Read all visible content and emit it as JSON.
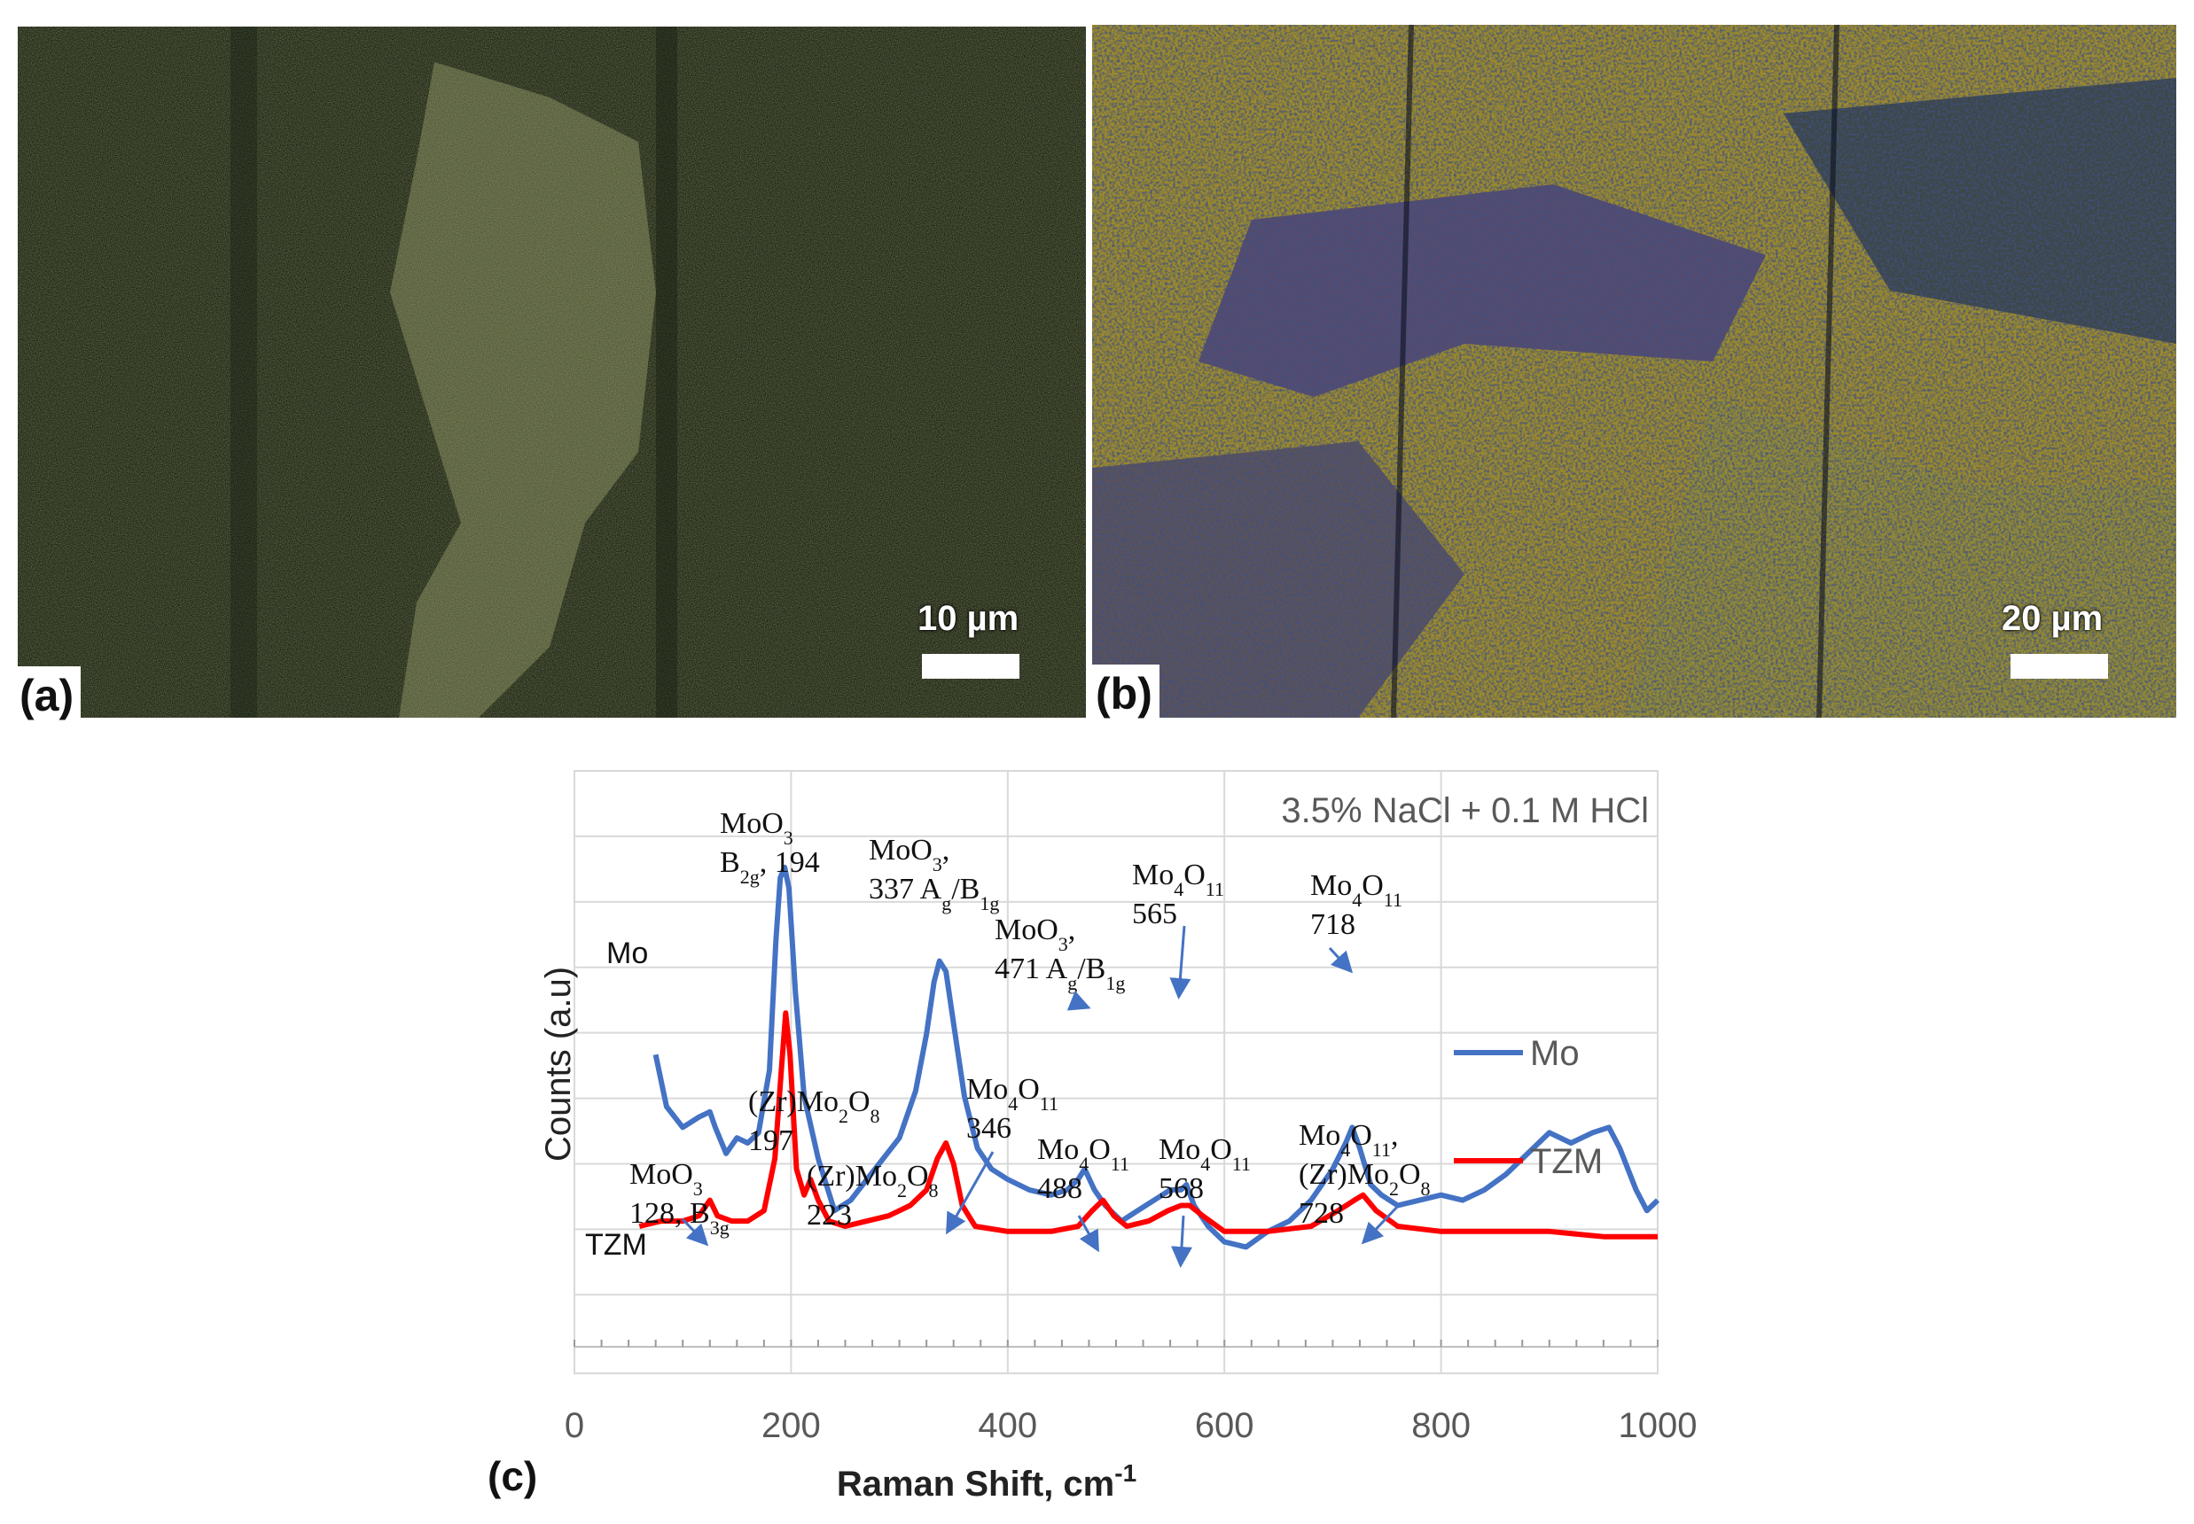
{
  "panels": {
    "a": {
      "label": "(a)",
      "scale_text": "10 µm"
    },
    "b": {
      "label": "(b)",
      "scale_text": "20 µm"
    },
    "c": {
      "label": "(c)"
    }
  },
  "chart_data": {
    "type": "line",
    "xlabel": "Raman Shift, cm",
    "xlabel_sup": "-1",
    "ylabel": "Counts (a.u)",
    "xlim": [
      0,
      1000
    ],
    "xticks": [
      "0",
      "200",
      "400",
      "600",
      "800",
      "1000"
    ],
    "condition_label": "3.5% NaCl + 0.1 M HCl",
    "grid": true,
    "legend_position": "right",
    "series": [
      {
        "name": "Mo",
        "color": "#4472c4",
        "curve_label": "Mo",
        "points": [
          [
            75,
            0.52
          ],
          [
            85,
            0.62
          ],
          [
            100,
            0.66
          ],
          [
            115,
            0.64
          ],
          [
            125,
            0.63
          ],
          [
            130,
            0.66
          ],
          [
            140,
            0.71
          ],
          [
            150,
            0.68
          ],
          [
            160,
            0.69
          ],
          [
            170,
            0.67
          ],
          [
            180,
            0.55
          ],
          [
            186,
            0.3
          ],
          [
            190,
            0.18
          ],
          [
            194,
            0.16
          ],
          [
            198,
            0.2
          ],
          [
            204,
            0.4
          ],
          [
            212,
            0.6
          ],
          [
            225,
            0.72
          ],
          [
            240,
            0.82
          ],
          [
            255,
            0.8
          ],
          [
            270,
            0.76
          ],
          [
            285,
            0.72
          ],
          [
            300,
            0.68
          ],
          [
            315,
            0.59
          ],
          [
            325,
            0.48
          ],
          [
            332,
            0.38
          ],
          [
            337,
            0.34
          ],
          [
            343,
            0.36
          ],
          [
            350,
            0.46
          ],
          [
            360,
            0.6
          ],
          [
            372,
            0.7
          ],
          [
            385,
            0.74
          ],
          [
            400,
            0.76
          ],
          [
            420,
            0.78
          ],
          [
            440,
            0.79
          ],
          [
            455,
            0.78
          ],
          [
            465,
            0.76
          ],
          [
            471,
            0.74
          ],
          [
            480,
            0.78
          ],
          [
            490,
            0.81
          ],
          [
            505,
            0.84
          ],
          [
            520,
            0.82
          ],
          [
            535,
            0.8
          ],
          [
            550,
            0.78
          ],
          [
            560,
            0.78
          ],
          [
            565,
            0.77
          ],
          [
            572,
            0.81
          ],
          [
            585,
            0.85
          ],
          [
            600,
            0.88
          ],
          [
            620,
            0.89
          ],
          [
            640,
            0.86
          ],
          [
            660,
            0.84
          ],
          [
            680,
            0.8
          ],
          [
            700,
            0.74
          ],
          [
            712,
            0.69
          ],
          [
            718,
            0.66
          ],
          [
            725,
            0.7
          ],
          [
            735,
            0.77
          ],
          [
            745,
            0.79
          ],
          [
            760,
            0.81
          ],
          [
            780,
            0.8
          ],
          [
            800,
            0.79
          ],
          [
            820,
            0.8
          ],
          [
            840,
            0.78
          ],
          [
            860,
            0.75
          ],
          [
            880,
            0.71
          ],
          [
            900,
            0.67
          ],
          [
            920,
            0.69
          ],
          [
            940,
            0.67
          ],
          [
            955,
            0.66
          ],
          [
            965,
            0.7
          ],
          [
            980,
            0.78
          ],
          [
            990,
            0.82
          ],
          [
            1000,
            0.8
          ]
        ]
      },
      {
        "name": "TZM",
        "color": "#ff0000",
        "curve_label": "TZM",
        "points": [
          [
            60,
            0.85
          ],
          [
            80,
            0.84
          ],
          [
            100,
            0.84
          ],
          [
            115,
            0.83
          ],
          [
            125,
            0.8
          ],
          [
            132,
            0.83
          ],
          [
            145,
            0.84
          ],
          [
            160,
            0.84
          ],
          [
            175,
            0.82
          ],
          [
            185,
            0.72
          ],
          [
            191,
            0.55
          ],
          [
            195,
            0.44
          ],
          [
            199,
            0.52
          ],
          [
            205,
            0.74
          ],
          [
            212,
            0.79
          ],
          [
            218,
            0.76
          ],
          [
            225,
            0.8
          ],
          [
            235,
            0.84
          ],
          [
            250,
            0.85
          ],
          [
            270,
            0.84
          ],
          [
            290,
            0.83
          ],
          [
            310,
            0.81
          ],
          [
            325,
            0.78
          ],
          [
            335,
            0.72
          ],
          [
            343,
            0.69
          ],
          [
            350,
            0.73
          ],
          [
            358,
            0.81
          ],
          [
            370,
            0.85
          ],
          [
            400,
            0.86
          ],
          [
            440,
            0.86
          ],
          [
            465,
            0.85
          ],
          [
            478,
            0.82
          ],
          [
            488,
            0.8
          ],
          [
            498,
            0.83
          ],
          [
            510,
            0.85
          ],
          [
            530,
            0.84
          ],
          [
            548,
            0.82
          ],
          [
            560,
            0.81
          ],
          [
            568,
            0.81
          ],
          [
            580,
            0.83
          ],
          [
            600,
            0.86
          ],
          [
            640,
            0.86
          ],
          [
            680,
            0.85
          ],
          [
            705,
            0.82
          ],
          [
            720,
            0.8
          ],
          [
            728,
            0.79
          ],
          [
            740,
            0.82
          ],
          [
            760,
            0.85
          ],
          [
            800,
            0.86
          ],
          [
            850,
            0.86
          ],
          [
            900,
            0.86
          ],
          [
            950,
            0.87
          ],
          [
            1000,
            0.87
          ]
        ]
      }
    ],
    "annotations": [
      {
        "lines": [
          "MoO|3",
          "B|2g|, 194"
        ]
      },
      {
        "lines": [
          "MoO|3|,",
          "337 A|g|/B|1g"
        ]
      },
      {
        "lines": [
          "MoO|3|,",
          "471  A|g|/B|1g"
        ]
      },
      {
        "lines": [
          "Mo|4|O|11",
          "565"
        ]
      },
      {
        "lines": [
          "Mo|4|O|11",
          "718"
        ]
      },
      {
        "lines": [
          "MoO|3",
          "128, B|3g"
        ]
      },
      {
        "lines": [
          "(Zr)Mo|2|O|8",
          "197"
        ]
      },
      {
        "lines": [
          "(Zr)Mo|2|O|8",
          "223"
        ]
      },
      {
        "lines": [
          "Mo|4|O|11",
          "346"
        ]
      },
      {
        "lines": [
          "Mo|4|O|11",
          "488"
        ]
      },
      {
        "lines": [
          "Mo|4|O|11",
          "568"
        ]
      },
      {
        "lines": [
          "Mo|4|O|11|,",
          "(Zr)Mo|2|O|8",
          "728"
        ]
      }
    ]
  }
}
